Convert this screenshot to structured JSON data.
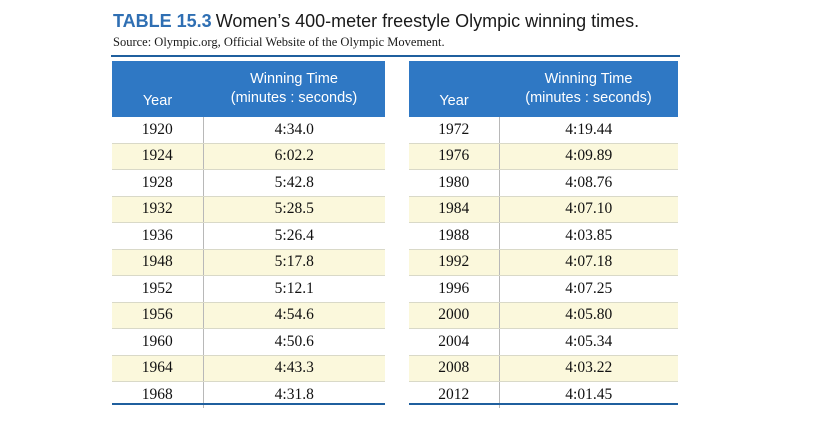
{
  "title": {
    "number": "TABLE 15.3",
    "text": "Women’s 400-meter freestyle Olympic winning times."
  },
  "source": "Source: Olympic.org, Official Website of the Olympic Movement.",
  "headers": {
    "year": "Year",
    "time_line1": "Winning Time",
    "time_line2": "(minutes : seconds)"
  },
  "left_rows": [
    {
      "year": "1920",
      "time": "4:34.0"
    },
    {
      "year": "1924",
      "time": "6:02.2"
    },
    {
      "year": "1928",
      "time": "5:42.8"
    },
    {
      "year": "1932",
      "time": "5:28.5"
    },
    {
      "year": "1936",
      "time": "5:26.4"
    },
    {
      "year": "1948",
      "time": "5:17.8"
    },
    {
      "year": "1952",
      "time": "5:12.1"
    },
    {
      "year": "1956",
      "time": "4:54.6"
    },
    {
      "year": "1960",
      "time": "4:50.6"
    },
    {
      "year": "1964",
      "time": "4:43.3"
    },
    {
      "year": "1968",
      "time": "4:31.8"
    }
  ],
  "right_rows": [
    {
      "year": "1972",
      "time": "4:19.44"
    },
    {
      "year": "1976",
      "time": "4:09.89"
    },
    {
      "year": "1980",
      "time": "4:08.76"
    },
    {
      "year": "1984",
      "time": "4:07.10"
    },
    {
      "year": "1988",
      "time": "4:03.85"
    },
    {
      "year": "1992",
      "time": "4:07.18"
    },
    {
      "year": "1996",
      "time": "4:07.25"
    },
    {
      "year": "2000",
      "time": "4:05.80"
    },
    {
      "year": "2004",
      "time": "4:05.34"
    },
    {
      "year": "2008",
      "time": "4:03.22"
    },
    {
      "year": "2012",
      "time": "4:01.45"
    }
  ],
  "colors": {
    "header_fill": "#2f78c4",
    "title_number": "#2f6fb3",
    "rule": "#1f5f9e",
    "stripe": "#fbf8dc"
  }
}
